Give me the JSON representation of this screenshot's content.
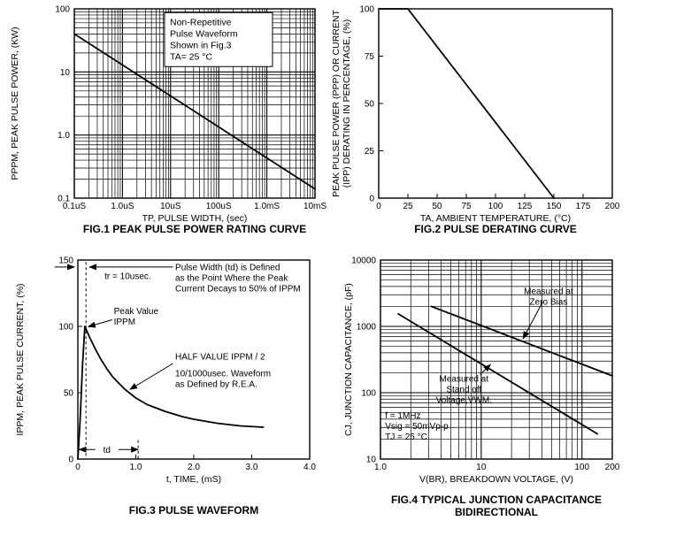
{
  "page": {
    "background": "#ffffff",
    "ink": "#000000"
  },
  "chart_data": [
    {
      "id": "fig1",
      "type": "line",
      "title": "FIG.1 PEAK PULSE POWER RATING CURVE",
      "xlabel": "TP, PULSE WIDTH, (sec)",
      "ylabel_lines": [
        "PPPM, PEAK PULSE POWER, (KW)"
      ],
      "xscale": "log",
      "yscale": "log",
      "xlim": [
        1e-07,
        0.01
      ],
      "ylim": [
        0.1,
        100
      ],
      "grid": "log",
      "xticks": [
        {
          "v": 1e-07,
          "t": "0.1uS"
        },
        {
          "v": 1e-06,
          "t": "1.0uS"
        },
        {
          "v": 1e-05,
          "t": "10uS"
        },
        {
          "v": 0.0001,
          "t": "100uS"
        },
        {
          "v": 0.001,
          "t": "1.0mS"
        },
        {
          "v": 0.01,
          "t": "10mS"
        }
      ],
      "yticks": [
        {
          "v": 100,
          "t": "100"
        },
        {
          "v": 10,
          "t": "10"
        },
        {
          "v": 1,
          "t": "1.0"
        },
        {
          "v": 0.1,
          "t": "0.1"
        }
      ],
      "series": [
        {
          "name": "peak-pulse-power",
          "points": [
            [
              1e-07,
              40
            ],
            [
              0.01,
              0.14
            ]
          ]
        }
      ],
      "annotations": [
        {
          "type": "textbox",
          "fx": 0.375,
          "fy": 0.02,
          "w": 122,
          "lines": [
            "Non-Repetitive",
            "Pulse Waveform",
            "Shown in Fig.3",
            "TA= 25 °C"
          ]
        }
      ]
    },
    {
      "id": "fig2",
      "type": "line",
      "title": "FIG.2 PULSE DERATING CURVE",
      "xlabel": "TA, AMBIENT TEMPERATURE, (°C)",
      "ylabel_lines": [
        "PEAK PULSE POWER (PPP) OR CURRENT",
        "(IPP) DERATING IN PERCENTAGE, (%)"
      ],
      "xscale": "linear",
      "yscale": "linear",
      "xlim": [
        0,
        200
      ],
      "ylim": [
        0,
        100
      ],
      "grid": "none",
      "xticks": [
        {
          "v": 0,
          "t": "0"
        },
        {
          "v": 25,
          "t": "25"
        },
        {
          "v": 50,
          "t": "50"
        },
        {
          "v": 75,
          "t": "75"
        },
        {
          "v": 100,
          "t": "100"
        },
        {
          "v": 125,
          "t": "125"
        },
        {
          "v": 150,
          "t": "150"
        },
        {
          "v": 175,
          "t": "175"
        },
        {
          "v": 200,
          "t": "200"
        }
      ],
      "yticks": [
        {
          "v": 100,
          "t": "100"
        },
        {
          "v": 75,
          "t": "75"
        },
        {
          "v": 50,
          "t": "50"
        },
        {
          "v": 25,
          "t": "25"
        },
        {
          "v": 0,
          "t": "0"
        }
      ],
      "series": [
        {
          "name": "derating",
          "points": [
            [
              0,
              100
            ],
            [
              25,
              100
            ],
            [
              150,
              0
            ]
          ]
        }
      ],
      "annotations": []
    },
    {
      "id": "fig3",
      "type": "line",
      "title": "FIG.3 PULSE WAVEFORM",
      "xlabel": "t, TIME, (mS)",
      "ylabel_lines": [
        "IPPM, PEAK PULSE CURRENT, (%)"
      ],
      "xscale": "linear",
      "yscale": "linear",
      "xlim": [
        0,
        4
      ],
      "ylim": [
        0,
        150
      ],
      "grid": "none",
      "xticks": [
        {
          "v": 0,
          "t": "0"
        },
        {
          "v": 1,
          "t": "1.0"
        },
        {
          "v": 2,
          "t": "2.0"
        },
        {
          "v": 3,
          "t": "3.0"
        },
        {
          "v": 4,
          "t": "4.0"
        }
      ],
      "yticks": [
        {
          "v": 0,
          "t": "0"
        },
        {
          "v": 50,
          "t": "50"
        },
        {
          "v": 100,
          "t": "100"
        },
        {
          "v": 150,
          "t": "150"
        }
      ],
      "series": [
        {
          "name": "pulse-waveform",
          "points": [
            [
              0,
              0
            ],
            [
              0.04,
              30
            ],
            [
              0.08,
              70
            ],
            [
              0.12,
              100
            ],
            [
              0.2,
              92
            ],
            [
              0.3,
              83
            ],
            [
              0.4,
              75
            ],
            [
              0.5,
              68
            ],
            [
              0.6,
              62
            ],
            [
              0.8,
              53
            ],
            [
              1.0,
              46
            ],
            [
              1.2,
              41
            ],
            [
              1.5,
              36
            ],
            [
              1.8,
              32
            ],
            [
              2.0,
              30
            ],
            [
              2.4,
              27
            ],
            [
              2.8,
              25
            ],
            [
              3.2,
              24
            ]
          ]
        }
      ],
      "annotations": [
        {
          "type": "vline",
          "fx": 0.035,
          "fy1": 0.01,
          "fy2": 1.0,
          "dash": true
        },
        {
          "type": "arrow",
          "x1": -0.1,
          "y1": 0.035,
          "x2": -0.015,
          "y2": 0.035
        },
        {
          "type": "arrow",
          "x1": 0.41,
          "y1": 0.035,
          "x2": 0.05,
          "y2": 0.035
        },
        {
          "type": "text",
          "fx": 0.115,
          "fy": 0.095,
          "anchor": "start",
          "lines": [
            "tr = 10usec."
          ]
        },
        {
          "type": "text",
          "fx": 0.42,
          "fy": 0.05,
          "anchor": "start",
          "lines": [
            "Pulse Width (td) is Defined",
            "as the Point Where the Peak",
            "Current Decays to 50% of IPPM"
          ]
        },
        {
          "type": "text",
          "fx": 0.155,
          "fy": 0.27,
          "anchor": "start",
          "lines": [
            "Peak Value",
            "IPPM"
          ]
        },
        {
          "type": "arrow",
          "x1": 0.148,
          "y1": 0.3,
          "x2": 0.045,
          "y2": 0.335
        },
        {
          "type": "text",
          "fx": 0.42,
          "fy": 0.5,
          "anchor": "start",
          "lines": [
            "HALF VALUE  IPPM / 2"
          ]
        },
        {
          "type": "arrow",
          "x1": 0.41,
          "y1": 0.52,
          "x2": 0.225,
          "y2": 0.65
        },
        {
          "type": "text",
          "fx": 0.42,
          "fy": 0.585,
          "anchor": "start",
          "lines": [
            "10/1000usec. Waveform",
            "as Defined by R.E.A."
          ]
        },
        {
          "type": "arrow",
          "x1": 0.075,
          "y1": 0.952,
          "x2": 0.006,
          "y2": 0.952
        },
        {
          "type": "arrow",
          "x1": 0.175,
          "y1": 0.952,
          "x2": 0.26,
          "y2": 0.952
        },
        {
          "type": "text",
          "fx": 0.125,
          "fy": 0.968,
          "anchor": "middle",
          "lines": [
            "td"
          ]
        },
        {
          "type": "vline",
          "fx": 0.26,
          "fy1": 0.905,
          "fy2": 1.0,
          "dash": true
        }
      ]
    },
    {
      "id": "fig4",
      "type": "line",
      "title": "FIG.4 TYPICAL JUNCTION CAPACITANCE\nBIDIRECTIONAL",
      "xlabel": "V(BR), BREAKDOWN VOLTAGE, (V)",
      "ylabel_lines": [
        "CJ, JUNCTION CAPACITANCE, (pF)"
      ],
      "xscale": "log",
      "yscale": "log",
      "xlim": [
        1,
        200
      ],
      "ylim": [
        10,
        10000
      ],
      "grid": "log",
      "xticks": [
        {
          "v": 1,
          "t": "1.0"
        },
        {
          "v": 10,
          "t": "10"
        },
        {
          "v": 100,
          "t": "100"
        },
        {
          "v": 200,
          "t": "200"
        }
      ],
      "yticks": [
        {
          "v": 10,
          "t": "10"
        },
        {
          "v": 100,
          "t": "100"
        },
        {
          "v": 1000,
          "t": "1000"
        },
        {
          "v": 10000,
          "t": "10000"
        }
      ],
      "series": [
        {
          "name": "measured-at-zero-bias",
          "points": [
            [
              3.2,
              2000
            ],
            [
              200,
              180
            ]
          ]
        },
        {
          "name": "measured-at-standoff-voltage",
          "points": [
            [
              1.5,
              1540
            ],
            [
              142,
              24
            ]
          ]
        }
      ],
      "annotations": [
        {
          "type": "text",
          "fx": 0.725,
          "fy": 0.17,
          "anchor": "middle",
          "lines": [
            "Measured at",
            "Zero Bias"
          ]
        },
        {
          "type": "arrow",
          "x1": 0.7,
          "y1": 0.21,
          "x2": 0.615,
          "y2": 0.395
        },
        {
          "type": "text",
          "fx": 0.36,
          "fy": 0.61,
          "anchor": "middle",
          "lines": [
            "Measured at",
            "Stand off",
            "Voltage,VWM."
          ]
        },
        {
          "type": "arrow",
          "x1": 0.43,
          "y1": 0.575,
          "x2": 0.475,
          "y2": 0.525
        },
        {
          "type": "text",
          "fx": 0.02,
          "fy": 0.795,
          "anchor": "start",
          "lines": [
            "f = 1MHz",
            "Vsig = 50mVp-p",
            "TJ = 25 °C"
          ]
        }
      ]
    }
  ]
}
